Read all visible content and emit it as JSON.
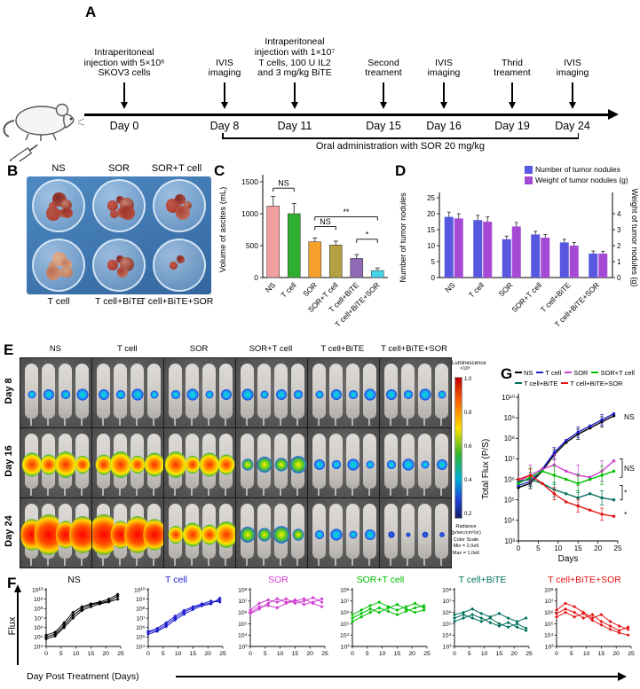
{
  "panelA": {
    "label": "A",
    "events": [
      {
        "day": "Day 0",
        "text": "Intraperitoneal injection with 5×10⁶ SKOV3 cells"
      },
      {
        "day": "Day 8",
        "text": "IVIS imaging"
      },
      {
        "day": "Day 11",
        "text": "Intraperitoneal injection with 1×10⁷ T cells, 100 U IL2 and 3 mg/kg BiTE"
      },
      {
        "day": "Day 15",
        "text": "Second treament"
      },
      {
        "day": "Day 16",
        "text": "IVIS imaging"
      },
      {
        "day": "Day 19",
        "text": "Thrid treament"
      },
      {
        "day": "Day 24",
        "text": "IVIS imaging"
      }
    ],
    "bracket_text": "Oral administration with SOR 20 mg/kg"
  },
  "panelB": {
    "label": "B",
    "top_labels": [
      "NS",
      "SOR",
      "SOR+T cell"
    ],
    "bottom_labels": [
      "T cell",
      "T cell+BiTE",
      "T cell+BiTE+SOR"
    ],
    "dishes": [
      {
        "group": "NS",
        "tumor_amount": "large"
      },
      {
        "group": "SOR",
        "tumor_amount": "large"
      },
      {
        "group": "SOR+T cell",
        "tumor_amount": "medium"
      },
      {
        "group": "T cell",
        "tumor_amount": "large",
        "pale": true
      },
      {
        "group": "T cell+BiTE",
        "tumor_amount": "medium"
      },
      {
        "group": "T cell+BiTE+SOR",
        "tumor_amount": "small"
      }
    ]
  },
  "panelC": {
    "label": "C"
  },
  "panelD": {
    "label": "D"
  },
  "panelE": {
    "label": "E",
    "col_headers": [
      "NS",
      "T cell",
      "SOR",
      "SOR+T cell",
      "T cell+BiTE",
      "T cell+BiTE+SOR"
    ],
    "row_headers": [
      "Day 8",
      "Day 16",
      "Day 24"
    ],
    "intensity_grid": [
      [
        2,
        2,
        2,
        2,
        2,
        2
      ],
      [
        4,
        4,
        4,
        3,
        2,
        2
      ],
      [
        5,
        5,
        4,
        3,
        2,
        1
      ]
    ],
    "colorbar": {
      "title": "Luminescence",
      "unit": "×10⁶",
      "ticks": [
        "1.0",
        "0.8",
        "0.6",
        "0.4",
        "0.2"
      ],
      "footer": [
        "Radiance",
        "(p/sec/cm²/sr)",
        "Color Scale",
        "Min = 2.0e5",
        "Max = 1.0e6"
      ]
    }
  },
  "panelG": {
    "label": "G"
  },
  "panelF": {
    "label": "F"
  },
  "chart_data": [
    {
      "id": "C",
      "type": "bar",
      "ylabel": "Volume of ascites (mL)",
      "ylim": [
        0,
        1500
      ],
      "yticks": [
        0,
        500,
        1000,
        1500
      ],
      "categories": [
        "NS",
        "T cell",
        "SOR",
        "SOR+T cell",
        "T cell+BiTE",
        "T cell+BiTE+SOR"
      ],
      "values": [
        1120,
        1000,
        560,
        510,
        300,
        110
      ],
      "errors": [
        150,
        160,
        60,
        60,
        60,
        40
      ],
      "bar_colors": [
        "#f49f9f",
        "#2fae2f",
        "#f5a12b",
        "#b3a040",
        "#8f6bb5",
        "#43d4e8"
      ],
      "significance": [
        {
          "from": 0,
          "to": 1,
          "value": 1400,
          "label": "NS"
        },
        {
          "from": 2,
          "to": 3,
          "value": 800,
          "label": "NS"
        },
        {
          "from": 2,
          "to": 5,
          "value": 950,
          "label": "**"
        },
        {
          "from": 4,
          "to": 5,
          "value": 600,
          "label": "*"
        }
      ]
    },
    {
      "id": "D",
      "type": "grouped-bar",
      "categories": [
        "NS",
        "T cell",
        "SOR",
        "SOR+T cell",
        "T cell+BiTE",
        "T cell+BiTE+SOR"
      ],
      "series": [
        {
          "name": "Number of tumor nodules",
          "axis": "left",
          "color": "#5757e0",
          "values": [
            19,
            18,
            12,
            13.5,
            11,
            7.5
          ],
          "errors": [
            1.5,
            1.5,
            1,
            1,
            1,
            0.8
          ]
        },
        {
          "name": "Weight of tumor nodules (g)",
          "axis": "right",
          "color": "#a64ad6",
          "values": [
            3.7,
            3.5,
            3.2,
            2.5,
            2.0,
            1.5
          ],
          "errors": [
            0.3,
            0.3,
            0.25,
            0.2,
            0.2,
            0.15
          ]
        }
      ],
      "left_axis": {
        "label": "Number of tumor nodules",
        "lim": [
          0,
          25
        ],
        "ticks": [
          0,
          5,
          10,
          15,
          20,
          25
        ]
      },
      "right_axis": {
        "label": "Weight of tumor nodules (g)",
        "lim": [
          0,
          5
        ],
        "ticks": [
          0,
          1,
          2,
          3,
          4
        ]
      }
    },
    {
      "id": "G",
      "type": "line",
      "ylabel": "Total Flux (P/S)",
      "xlabel": "Days",
      "y_scale": "log10",
      "ylim_log": [
        3,
        10
      ],
      "xlim": [
        0,
        25
      ],
      "xticks": [
        0,
        5,
        10,
        15,
        20,
        25
      ],
      "x": [
        0,
        3,
        6,
        9,
        12,
        15,
        18,
        21,
        24
      ],
      "series": [
        {
          "name": "NS",
          "color": "#000000",
          "err": 0.25,
          "log_values": [
            5.6,
            5.8,
            6.4,
            7.2,
            7.8,
            8.2,
            8.5,
            8.8,
            9.1
          ]
        },
        {
          "name": "T cell",
          "color": "#2020cc",
          "err": 0.25,
          "log_values": [
            5.7,
            5.9,
            6.5,
            7.3,
            7.9,
            8.3,
            8.6,
            8.9,
            9.2
          ]
        },
        {
          "name": "SOR",
          "color": "#cf3ecf",
          "err": 0.5,
          "log_values": [
            5.9,
            6.2,
            6.5,
            6.7,
            6.4,
            6.2,
            6.1,
            6.4,
            6.9
          ]
        },
        {
          "name": "SOR+T cell",
          "color": "#00c000",
          "err": 0.45,
          "log_values": [
            5.8,
            6.1,
            6.4,
            6.2,
            6.0,
            5.8,
            6.0,
            6.2,
            6.4
          ]
        },
        {
          "name": "T cell+BiTE",
          "color": "#00705c",
          "err": 0.35,
          "log_values": [
            5.9,
            6.0,
            5.8,
            5.5,
            5.3,
            5.1,
            5.3,
            5.1,
            5.0
          ]
        },
        {
          "name": "T cell+BiTE+SOR",
          "color": "#e51515",
          "err": 0.3,
          "log_values": [
            6.0,
            6.2,
            5.8,
            5.3,
            4.9,
            4.7,
            4.5,
            4.3,
            4.2
          ]
        }
      ],
      "annotations": [
        {
          "label": "NS",
          "at_log": 9.05
        },
        {
          "label": "NS",
          "at_log": 6.55,
          "brace": [
            7.0,
            6.1
          ]
        },
        {
          "label": "*",
          "at_log": 5.35,
          "brace": [
            5.7,
            5.0
          ]
        },
        {
          "label": "*",
          "at_log": 4.3
        }
      ]
    },
    {
      "id": "F",
      "type": "line-small-multiples",
      "ylabel": "Flux",
      "xlabel": "Day Post Treatment (Days)",
      "xticks": [
        0,
        5,
        10,
        15,
        20,
        25
      ],
      "x": [
        0,
        3,
        6,
        9,
        12,
        15,
        18,
        21,
        24
      ],
      "plots": [
        {
          "title": "NS",
          "color": "#000000",
          "ylim_log": [
            4,
            10
          ],
          "traces": [
            [
              5.0,
              5.3,
              6.2,
              7.3,
              8.0,
              8.4,
              8.6,
              8.8,
              9.3
            ],
            [
              4.8,
              5.1,
              6.0,
              7.0,
              7.8,
              8.2,
              8.5,
              8.7,
              9.0
            ],
            [
              5.2,
              5.5,
              6.5,
              7.6,
              8.2,
              8.5,
              8.7,
              9.0,
              9.5
            ]
          ]
        },
        {
          "title": "T cell",
          "color": "#2020cc",
          "ylim_log": [
            4,
            10
          ],
          "traces": [
            [
              5.5,
              5.7,
              6.3,
              7.0,
              7.6,
              8.1,
              8.4,
              8.6,
              8.9
            ],
            [
              5.3,
              5.6,
              6.1,
              6.8,
              7.4,
              7.9,
              8.3,
              8.5,
              9.1
            ],
            [
              5.6,
              5.9,
              6.5,
              7.2,
              7.8,
              8.2,
              8.5,
              8.8,
              8.7
            ]
          ]
        },
        {
          "title": "SOR",
          "color": "#cf3ecf",
          "ylim_log": [
            3,
            8
          ],
          "traces": [
            [
              6.2,
              6.8,
              7.1,
              6.9,
              7.2,
              6.8,
              7.0,
              7.3,
              6.9
            ],
            [
              5.9,
              6.3,
              6.8,
              7.2,
              6.9,
              7.1,
              6.7,
              6.9,
              7.2
            ],
            [
              6.0,
              6.5,
              6.6,
              6.4,
              6.8,
              7.0,
              7.2,
              6.8,
              6.5
            ]
          ]
        },
        {
          "title": "SOR+T cell",
          "color": "#00c000",
          "ylim_log": [
            3,
            8
          ],
          "traces": [
            [
              5.8,
              6.2,
              6.6,
              6.9,
              6.5,
              6.2,
              6.5,
              6.8,
              6.4
            ],
            [
              5.5,
              5.9,
              6.3,
              6.0,
              6.4,
              6.7,
              6.3,
              6.0,
              6.2
            ],
            [
              5.2,
              5.6,
              6.0,
              6.4,
              6.1,
              5.8,
              6.1,
              6.4,
              6.6
            ]
          ]
        },
        {
          "title": "T cell+BiTE",
          "color": "#00705c",
          "ylim_log": [
            3,
            8
          ],
          "traces": [
            [
              5.8,
              6.0,
              6.3,
              5.9,
              5.6,
              5.9,
              5.5,
              5.2,
              5.5
            ],
            [
              5.5,
              5.8,
              5.5,
              5.2,
              5.5,
              5.0,
              4.7,
              5.0,
              4.6
            ],
            [
              5.2,
              5.5,
              5.8,
              5.5,
              5.1,
              4.8,
              5.1,
              4.7,
              4.4
            ]
          ]
        },
        {
          "title": "T cell+BiTE+SOR",
          "color": "#e51515",
          "ylim_log": [
            3,
            8
          ],
          "traces": [
            [
              6.2,
              6.8,
              6.5,
              6.0,
              5.5,
              5.8,
              5.2,
              4.8,
              4.5
            ],
            [
              5.9,
              6.3,
              6.0,
              5.5,
              5.8,
              5.2,
              4.8,
              4.4,
              4.7
            ],
            [
              5.6,
              6.0,
              5.6,
              5.9,
              5.3,
              4.9,
              4.5,
              4.2,
              4.0
            ]
          ]
        }
      ]
    }
  ]
}
